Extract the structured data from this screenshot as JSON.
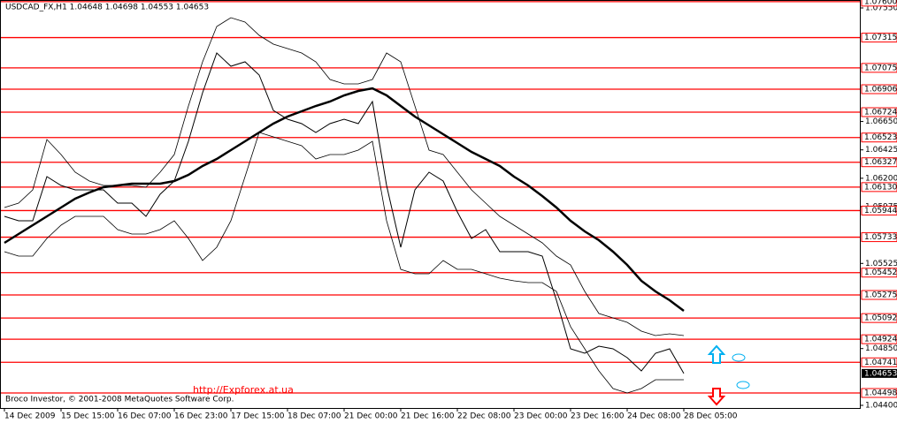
{
  "chart_data": {
    "type": "line",
    "title": "USDCAD_FX,H1  1.04648 1.04698 1.04553 1.04653",
    "annotations": [
      "Broco Investor, © 2001-2008 MetaQuotes Software Corp.",
      "http://Expforex.at.ua"
    ],
    "categories": [
      "14 Dec 2009",
      null,
      null,
      null,
      "15 Dec 15:00",
      null,
      null,
      null,
      "16 Dec 07:00",
      null,
      null,
      null,
      "16 Dec 23:00",
      null,
      null,
      null,
      "17 Dec 15:00",
      null,
      null,
      null,
      "18 Dec 07:00",
      null,
      null,
      null,
      "21 Dec 00:00",
      null,
      null,
      null,
      "21 Dec 16:00",
      null,
      null,
      null,
      "22 Dec 08:00",
      null,
      null,
      null,
      "23 Dec 00:00",
      null,
      null,
      null,
      "23 Dec 16:00",
      null,
      null,
      null,
      "24 Dec 08:00",
      null,
      null,
      null,
      "28 Dec 05:00"
    ],
    "series": [
      {
        "color": "#000000",
        "values": [
          1.05898,
          1.05863,
          1.05863,
          1.06213,
          1.06143,
          1.06108,
          1.06108,
          1.06108,
          1.06003,
          1.06003,
          1.05898,
          1.06073,
          1.06178,
          1.06493,
          1.06878,
          1.07193,
          1.07088,
          1.07123,
          1.07018,
          1.06738,
          1.06668,
          1.06633,
          1.06563,
          1.06633,
          1.06668,
          1.06633,
          1.06808,
          1.06143,
          1.05653,
          1.06108,
          1.06248,
          1.06178,
          1.05933,
          1.05723,
          1.05793,
          1.05618,
          1.05618,
          1.05618,
          1.05583,
          1.05233,
          1.04848,
          1.04813,
          1.04869,
          1.04848,
          1.04778,
          1.04673,
          1.04813,
          1.04848,
          1.04653
        ]
      },
      {
        "color": "#000000",
        "values": [
          1.05688,
          1.05758,
          1.05828,
          1.05898,
          1.05968,
          1.06038,
          1.06087,
          1.06129,
          1.06143,
          1.06157,
          1.06157,
          1.06157,
          1.06178,
          1.06227,
          1.06297,
          1.06353,
          1.06423,
          1.06493,
          1.06563,
          1.06633,
          1.06689,
          1.06731,
          1.06773,
          1.06808,
          1.06857,
          1.06892,
          1.06913,
          1.06857,
          1.06773,
          1.06689,
          1.06619,
          1.06549,
          1.06479,
          1.06409,
          1.06353,
          1.06297,
          1.06213,
          1.06143,
          1.06059,
          1.05968,
          1.05863,
          1.05779,
          1.05709,
          1.05618,
          1.05513,
          1.05387,
          1.05303,
          1.05233,
          1.05149
        ]
      },
      {
        "color": "#000000",
        "values": [
          1.05968,
          1.06003,
          1.06108,
          1.06507,
          1.06388,
          1.06248,
          1.06178,
          1.06143,
          1.06143,
          1.06143,
          1.06129,
          1.06248,
          1.06388,
          1.06773,
          1.07123,
          1.07403,
          1.07473,
          1.07438,
          1.07333,
          1.07263,
          1.07228,
          1.07193,
          1.07123,
          1.06983,
          1.06948,
          1.06948,
          1.06983,
          1.07193,
          1.07123,
          1.06773,
          1.06423,
          1.06388,
          1.06248,
          1.06108,
          1.06003,
          1.05898,
          1.05828,
          1.05758,
          1.05688,
          1.05583,
          1.05513,
          1.05303,
          1.05128,
          1.05093,
          1.05058,
          1.04988,
          1.04953,
          1.04967,
          1.04953
        ]
      },
      {
        "color": "#000000",
        "values": [
          1.05618,
          1.05583,
          1.05583,
          1.05723,
          1.05828,
          1.05898,
          1.05898,
          1.05898,
          1.05793,
          1.05758,
          1.05758,
          1.05793,
          1.05863,
          1.05723,
          1.05548,
          1.05653,
          1.05863,
          1.06213,
          1.06563,
          1.06528,
          1.06493,
          1.06458,
          1.06353,
          1.06388,
          1.06388,
          1.06423,
          1.06493,
          1.05863,
          1.05478,
          1.05443,
          1.05443,
          1.05548,
          1.05478,
          1.05478,
          1.05443,
          1.05408,
          1.05387,
          1.05373,
          1.05373,
          1.05303,
          1.05023,
          1.04848,
          1.04673,
          1.04533,
          1.04498,
          1.04533,
          1.04603,
          1.04603,
          1.04603
        ]
      }
    ],
    "ylim": [
      1.04379,
      1.07613
    ],
    "yticks": [
      {
        "value": 1.0755,
        "label": "1.07550"
      },
      {
        "value": 1.0665,
        "label": "1.06650"
      },
      {
        "value": 1.06425,
        "label": "1.06425"
      },
      {
        "value": 1.062,
        "label": "1.06200"
      },
      {
        "value": 1.05975,
        "label": "1.05975"
      },
      {
        "value": 1.05525,
        "label": "1.05525"
      },
      {
        "value": 1.0485,
        "label": "1.04850"
      },
      {
        "value": 1.044,
        "label": "1.04400"
      }
    ],
    "levels_color": "#ff0000",
    "levels": [
      {
        "value": 1.076,
        "label": "1.07600"
      },
      {
        "value": 1.07315,
        "label": "1.07315"
      },
      {
        "value": 1.07075,
        "label": "1.07075"
      },
      {
        "value": 1.06906,
        "label": "1.06906"
      },
      {
        "value": 1.06724,
        "label": "1.06724"
      },
      {
        "value": 1.06523,
        "label": "1.06523"
      },
      {
        "value": 1.06327,
        "label": "1.06327"
      },
      {
        "value": 1.0613,
        "label": "1.06130"
      },
      {
        "value": 1.05944,
        "label": "1.05944"
      },
      {
        "value": 1.05733,
        "label": "1.05733"
      },
      {
        "value": 1.05452,
        "label": "1.05452"
      },
      {
        "value": 1.05275,
        "label": "1.05275"
      },
      {
        "value": 1.05092,
        "label": "1.05092"
      },
      {
        "value": 1.04924,
        "label": "1.04924"
      },
      {
        "value": 1.04741,
        "label": "1.04741"
      },
      {
        "value": 1.04498,
        "label": "1.04498"
      }
    ],
    "current_price": {
      "value": 1.04653,
      "label": "1.04653"
    }
  }
}
